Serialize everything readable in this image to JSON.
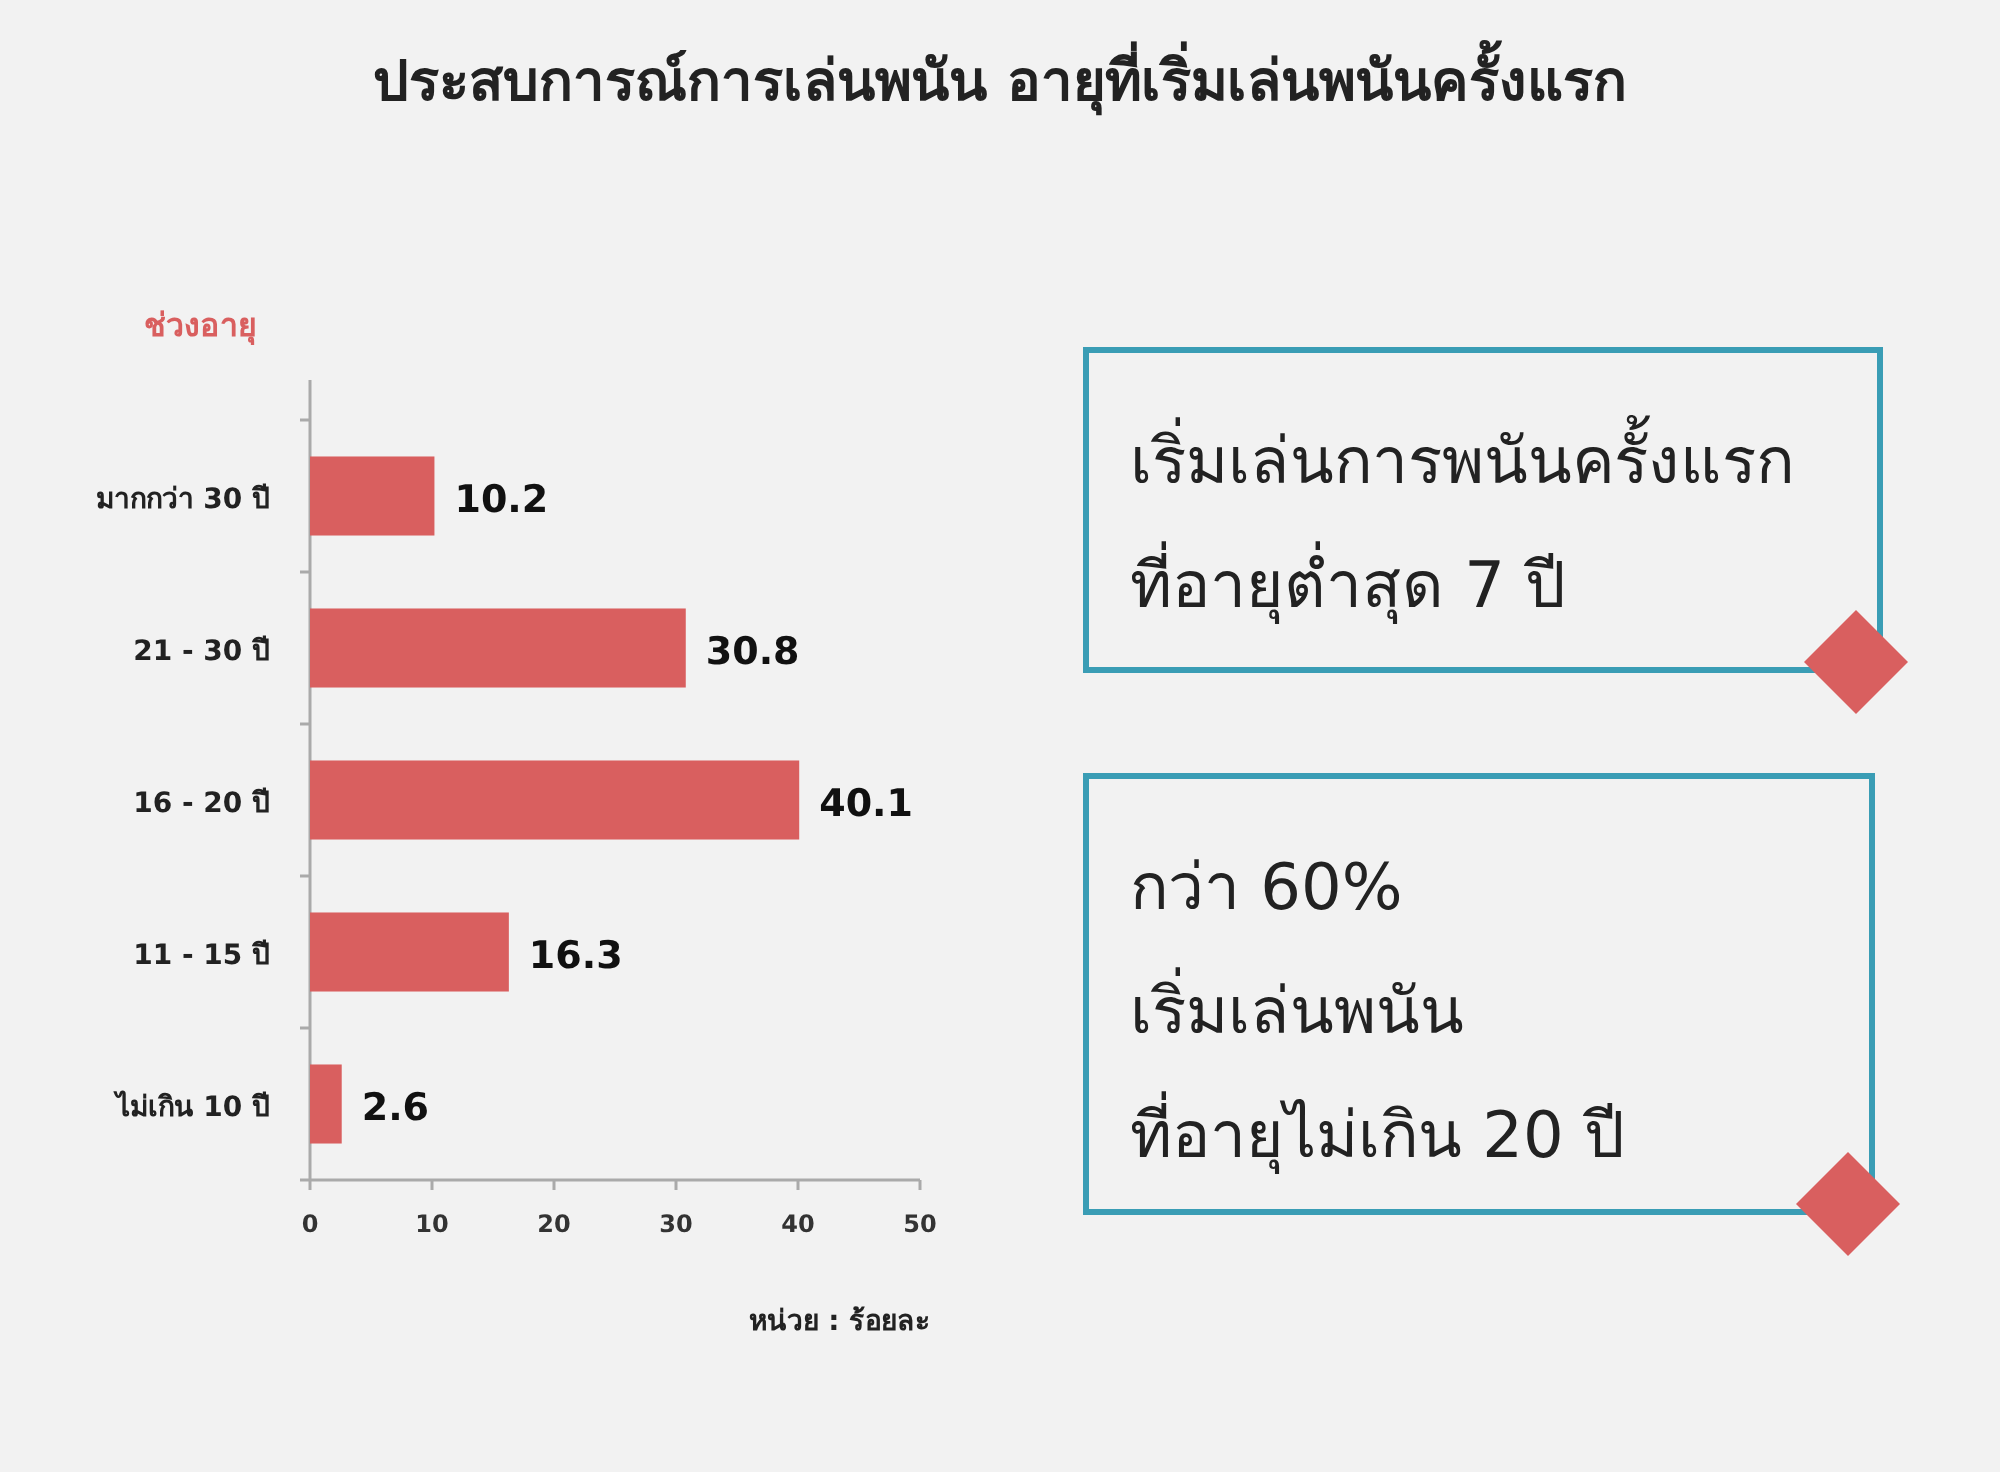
{
  "chart_data": [
    {
      "type": "bar",
      "orientation": "horizontal",
      "title": "ประสบการณ์การเล่นพนัน อายุที่เริ่มเล่นพนันครั้งแรก",
      "ylabel": "ช่วงอายุ",
      "categories": [
        "มากกว่า 30 ปี",
        "21 - 30 ปี",
        "16 - 20 ปี",
        "11 - 15 ปี",
        "ไม่เกิน 10 ปี"
      ],
      "values": [
        10.2,
        30.8,
        40.1,
        16.3,
        2.6
      ],
      "color": "#d95f5f",
      "data_labels": true,
      "xlim": [
        0,
        50
      ],
      "xticks": [
        0,
        10,
        20,
        30,
        40,
        50
      ],
      "annotations": [
        "หน่วย : ร้อยละ"
      ]
    },
    {
      "type": "other",
      "annotations": [
        "เริ่มเล่นการพนันครั้งแรก",
        "ที่อายุต่ำสุด 7 ปี"
      ]
    },
    {
      "type": "other",
      "annotations": [
        "กว่า 60%",
        "เริ่มเล่นพนัน",
        "ที่อายุไม่เกิน 20 ปี"
      ]
    }
  ]
}
